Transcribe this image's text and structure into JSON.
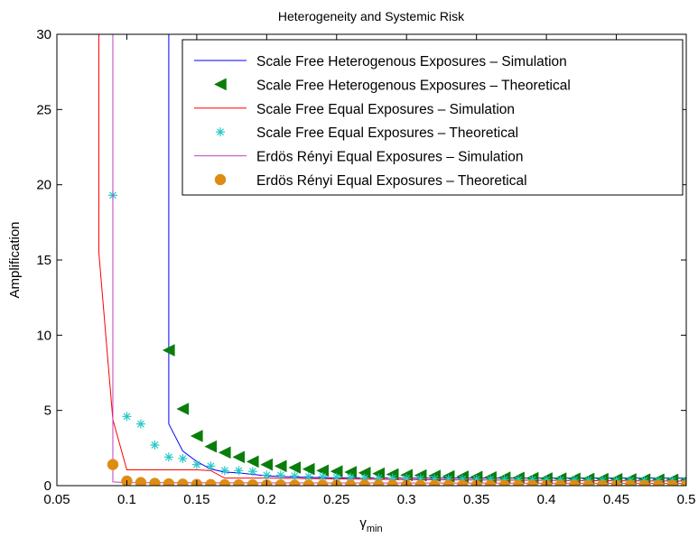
{
  "chart_data": {
    "type": "line",
    "title": "Heterogeneity and Systemic Risk",
    "xlabel": "γ",
    "xlabel_subscript": "min",
    "ylabel": "Amplification",
    "xlim": [
      0.05,
      0.5
    ],
    "ylim": [
      0,
      30
    ],
    "x_ticks": [
      0.05,
      0.1,
      0.15,
      0.2,
      0.25,
      0.3,
      0.35,
      0.4,
      0.45,
      0.5
    ],
    "x_tick_labels": [
      "0.05",
      "0.1",
      "0.15",
      "0.2",
      "0.25",
      "0.3",
      "0.35",
      "0.4",
      "0.45",
      "0.5"
    ],
    "y_ticks": [
      0,
      5,
      10,
      15,
      20,
      25,
      30
    ],
    "y_tick_labels": [
      "0",
      "5",
      "10",
      "15",
      "20",
      "25",
      "30"
    ],
    "grid": false,
    "legend_position": "top-right",
    "series": [
      {
        "name": "Scale Free Heterogenous Exposures – Simulation",
        "kind": "line",
        "color": "#0000ff",
        "x": [
          0.13,
          0.13,
          0.14,
          0.15,
          0.16,
          0.17,
          0.18,
          0.19,
          0.2,
          0.21,
          0.22,
          0.23,
          0.25,
          0.3,
          0.35,
          0.4,
          0.45,
          0.5
        ],
        "y": [
          31,
          4.1,
          2.3,
          1.6,
          1.1,
          0.9,
          0.85,
          0.75,
          0.65,
          0.6,
          0.58,
          0.55,
          0.52,
          0.5,
          0.5,
          0.5,
          0.5,
          0.5
        ]
      },
      {
        "name": "Scale Free Heterogenous Exposures – Theoretical",
        "kind": "marker",
        "marker": "triangle-left",
        "color": "#0a7d0a",
        "x": [
          0.13,
          0.14,
          0.15,
          0.16,
          0.17,
          0.18,
          0.19,
          0.2,
          0.21,
          0.22,
          0.23,
          0.24,
          0.25,
          0.26,
          0.27,
          0.28,
          0.29,
          0.3,
          0.31,
          0.32,
          0.33,
          0.34,
          0.35,
          0.36,
          0.37,
          0.38,
          0.39,
          0.4,
          0.41,
          0.42,
          0.43,
          0.44,
          0.45,
          0.46,
          0.47,
          0.48,
          0.49,
          0.5
        ],
        "y": [
          9.0,
          5.1,
          3.3,
          2.6,
          2.2,
          1.9,
          1.6,
          1.4,
          1.3,
          1.2,
          1.1,
          1.0,
          0.95,
          0.9,
          0.85,
          0.8,
          0.75,
          0.7,
          0.68,
          0.65,
          0.62,
          0.6,
          0.58,
          0.55,
          0.53,
          0.52,
          0.5,
          0.48,
          0.47,
          0.46,
          0.45,
          0.44,
          0.43,
          0.42,
          0.41,
          0.4,
          0.39,
          0.38
        ]
      },
      {
        "name": "Scale Free Equal Exposures – Simulation",
        "kind": "line",
        "color": "#ff0000",
        "x": [
          0.08,
          0.08,
          0.09,
          0.1,
          0.15,
          0.16,
          0.17,
          0.2,
          0.25,
          0.3,
          0.4,
          0.5
        ],
        "y": [
          31,
          15.5,
          4.4,
          1.05,
          1.05,
          1.0,
          0.5,
          0.5,
          0.45,
          0.4,
          0.35,
          0.3
        ]
      },
      {
        "name": "Scale Free Equal Exposures – Theoretical",
        "kind": "marker",
        "marker": "asterisk",
        "color": "#28c8c8",
        "x": [
          0.09,
          0.1,
          0.11,
          0.12,
          0.13,
          0.14,
          0.15,
          0.16,
          0.17,
          0.18,
          0.19,
          0.2,
          0.21,
          0.22,
          0.23,
          0.24,
          0.25,
          0.26,
          0.27,
          0.28,
          0.29,
          0.3,
          0.31,
          0.32,
          0.33,
          0.34,
          0.35,
          0.36,
          0.37,
          0.38,
          0.39,
          0.4,
          0.41,
          0.42,
          0.43,
          0.44,
          0.45,
          0.46,
          0.47,
          0.48,
          0.49,
          0.5
        ],
        "y": [
          19.3,
          4.6,
          4.1,
          2.7,
          1.9,
          1.8,
          1.4,
          1.3,
          1.0,
          1.0,
          0.95,
          0.7,
          0.7,
          0.65,
          0.6,
          0.6,
          0.55,
          0.55,
          0.5,
          0.5,
          0.5,
          0.48,
          0.46,
          0.45,
          0.44,
          0.43,
          0.42,
          0.41,
          0.4,
          0.4,
          0.39,
          0.38,
          0.37,
          0.37,
          0.36,
          0.35,
          0.35,
          0.34,
          0.34,
          0.33,
          0.33,
          0.32
        ]
      },
      {
        "name": "Erdös Rényi Equal Exposures – Simulation",
        "kind": "line",
        "color": "#c040c0",
        "x": [
          0.09,
          0.09,
          0.1,
          0.5
        ],
        "y": [
          31,
          0.25,
          0.2,
          0.15
        ]
      },
      {
        "name": "Erdös Rényi Equal Exposures – Theoretical",
        "kind": "marker",
        "marker": "circle",
        "color": "#dd8c14",
        "x": [
          0.09,
          0.1,
          0.11,
          0.12,
          0.13,
          0.14,
          0.15,
          0.16,
          0.17,
          0.18,
          0.19,
          0.2,
          0.21,
          0.22,
          0.23,
          0.24,
          0.25,
          0.26,
          0.27,
          0.28,
          0.29,
          0.3,
          0.31,
          0.32,
          0.33,
          0.34,
          0.35,
          0.36,
          0.37,
          0.38,
          0.39,
          0.4,
          0.41,
          0.42,
          0.43,
          0.44,
          0.45,
          0.46,
          0.47,
          0.48,
          0.49,
          0.5
        ],
        "y": [
          1.4,
          0.3,
          0.2,
          0.15,
          0.12,
          0.1,
          0.08,
          0.07,
          0.06,
          0.05,
          0.05,
          0.04,
          0.04,
          0.03,
          0.03,
          0.03,
          0.02,
          0.02,
          0.02,
          0.02,
          0.02,
          0.02,
          0.01,
          0.01,
          0.01,
          0.01,
          0.01,
          0.01,
          0.01,
          0.01,
          0.01,
          0.01,
          0.01,
          0.01,
          0.01,
          0.01,
          0.01,
          0.01,
          0.01,
          0.01,
          0.01,
          0.01
        ]
      }
    ]
  }
}
